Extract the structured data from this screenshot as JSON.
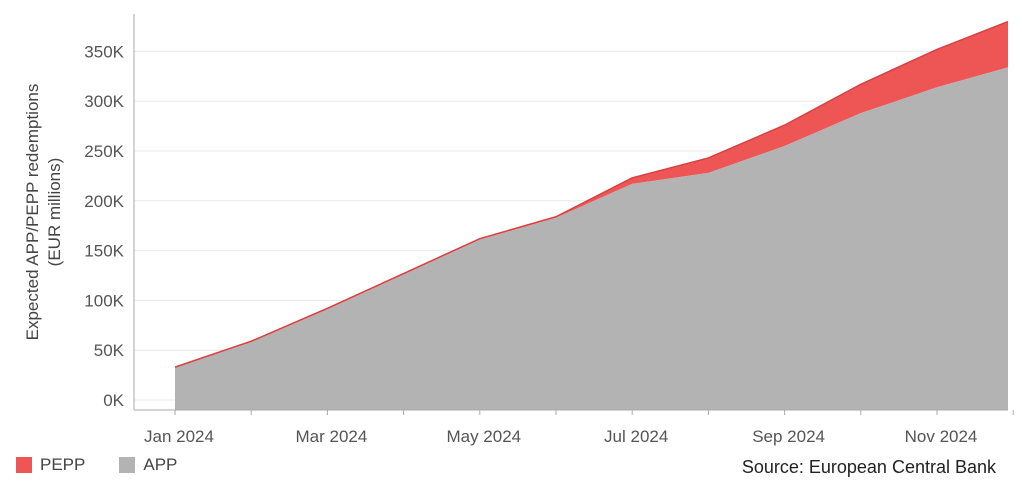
{
  "chart_data": {
    "type": "area",
    "stacked": true,
    "ylabel_lines": [
      "Expected APP/PEPP redemptions",
      "(EUR millions)"
    ],
    "x_ticks": [
      "Jan 2024",
      "Mar 2024",
      "May 2024",
      "Jul 2024",
      "Sep 2024",
      "Nov 2024"
    ],
    "y_ticks": [
      "0K",
      "50K",
      "100K",
      "150K",
      "200K",
      "250K",
      "300K",
      "350K"
    ],
    "ylim": [
      0,
      380000
    ],
    "x": [
      "Jan 2024",
      "Feb 2024",
      "Mar 2024",
      "Apr 2024",
      "May 2024",
      "Jun 2024",
      "Jul 2024",
      "Aug 2024",
      "Sep 2024",
      "Oct 2024",
      "Nov 2024",
      "Dec 2024"
    ],
    "series": [
      {
        "name": "APP",
        "color": "#b3b3b3",
        "values": [
          33000,
          58000,
          91000,
          126000,
          161000,
          183000,
          217000,
          228000,
          255000,
          288000,
          314000,
          334000
        ]
      },
      {
        "name": "PEPP",
        "color": "#ee5555",
        "values": [
          0,
          1000,
          1000,
          1000,
          1000,
          1000,
          6000,
          15000,
          21000,
          29000,
          38000,
          46000
        ]
      }
    ],
    "grid": true,
    "legend_position": "bottom-left"
  },
  "source": "Source: European Central Bank",
  "colors": {
    "pepp": "#ee5555",
    "app": "#b3b3b3",
    "line": "#d94040",
    "grid": "#e8e8e8",
    "axis": "#aaaaaa"
  }
}
